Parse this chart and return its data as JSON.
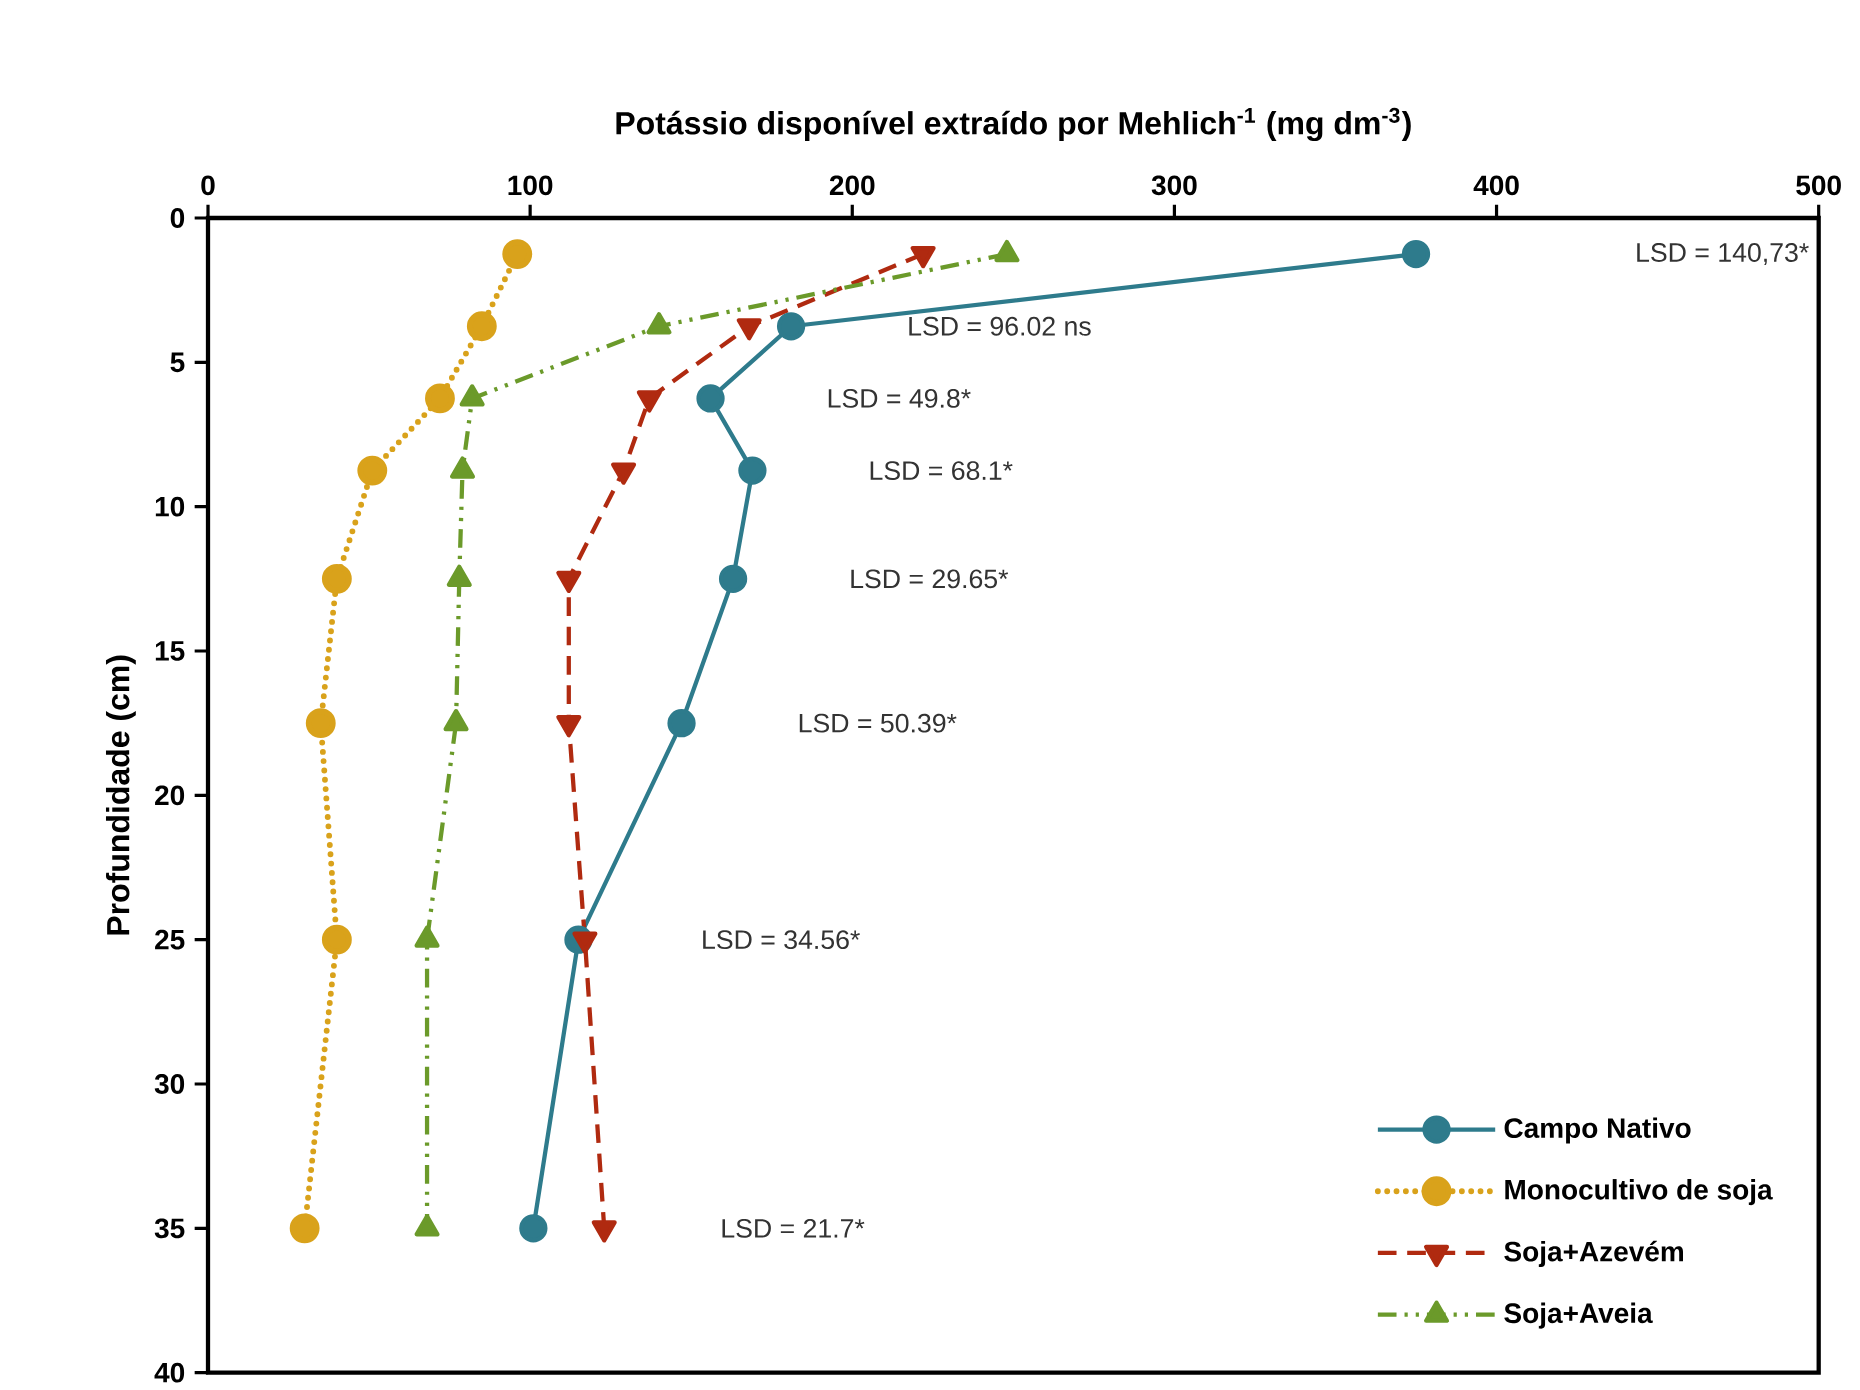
{
  "chart_data": {
    "type": "line",
    "xlabel": "Potássio disponível extraído por Mehlich$^{-1}$ (mg dm$^{-3}$)",
    "ylabel": "Profundidade (cm)",
    "xlim": [
      0,
      500
    ],
    "xticks": [
      0,
      100,
      200,
      300,
      400,
      500
    ],
    "ylim": [
      40,
      0
    ],
    "yticks": [
      0,
      5,
      10,
      15,
      20,
      25,
      30,
      35,
      40
    ],
    "legend": "bottom right",
    "grid": false,
    "series": [
      {
        "name": "Campo Nativo",
        "color": "#2e7b8c",
        "marker": "circle",
        "line_style": "solid",
        "x": [
          375,
          181,
          156,
          169,
          163,
          147,
          115,
          101
        ],
        "values": [
          1.25,
          3.75,
          6.25,
          8.75,
          12.5,
          17.5,
          25,
          35
        ]
      },
      {
        "name": "Monocultivo de soja",
        "color": "#d9a21b",
        "marker": "circle",
        "line_style": "dotted",
        "x": [
          96,
          85,
          72,
          51,
          40,
          35,
          40,
          30
        ],
        "values": [
          1.25,
          3.75,
          6.25,
          8.75,
          12.5,
          17.5,
          25,
          35
        ]
      },
      {
        "name": "Soja+Azevém",
        "color": "#b02a10",
        "marker": "triangle down",
        "line_style": "dashed",
        "x": [
          222,
          168,
          137,
          129,
          112,
          112,
          117,
          123
        ],
        "values": [
          1.25,
          3.75,
          6.25,
          8.75,
          12.5,
          17.5,
          25,
          35
        ]
      },
      {
        "name": "Soja+Aveia",
        "color": "#6b9a2a",
        "marker": "triangle",
        "line_style": "dashdot",
        "x": [
          248,
          140,
          82,
          79,
          78,
          77,
          68,
          68
        ],
        "values": [
          1.25,
          3.75,
          6.25,
          8.75,
          12.5,
          17.5,
          25,
          35
        ]
      }
    ],
    "annotations": [
      "LSD = 140,73*",
      "LSD = 96.02 ns",
      "LSD = 49.8*",
      "LSD = 68.1*",
      "LSD = 29.65*",
      "LSD = 50.39*",
      "LSD = 34.56*",
      "LSD = 21.7*"
    ]
  }
}
